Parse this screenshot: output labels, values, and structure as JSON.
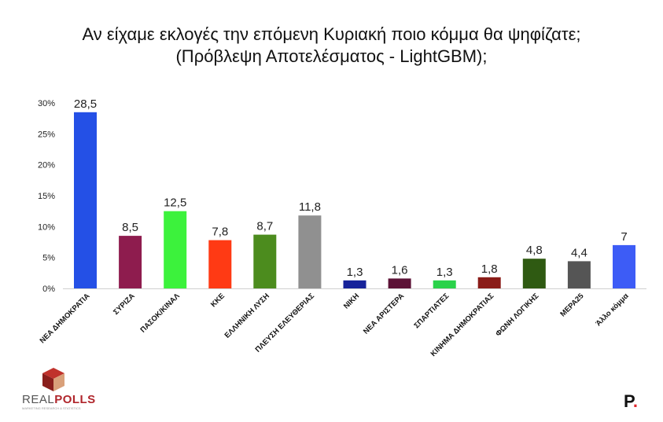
{
  "title_lines": [
    "Αν είχαμε εκλογές την επόμενη Κυριακή ποιο κόμμα θα ψηφίζατε;",
    "(Πρόβλεψη Αποτελέσματος - LightGBM);"
  ],
  "chart_data": {
    "type": "bar",
    "title": "Αν είχαμε εκλογές την επόμενη Κυριακή ποιο κόμμα θα ψηφίζατε; (Πρόβλεψη Αποτελέσματος - LightGBM);",
    "xlabel": "",
    "ylabel": "",
    "ylim": [
      0,
      30
    ],
    "yticks": [
      "0%",
      "5%",
      "10%",
      "15%",
      "20%",
      "25%",
      "30%"
    ],
    "grid": false,
    "legend": "none",
    "categories": [
      "ΝΕΑ ΔΗΜΟΚΡΑΤΙΑ",
      "ΣΥΡΙΖΑ",
      "ΠΑΣΟΚ/ΚΙΝΑΛ",
      "ΚΚΕ",
      "ΕΛΛΗΝΙΚΗ ΛΥΣΗ",
      "ΠΛΕΥΣΗ ΕΛΕΥΘΕΡΙΑΣ",
      "ΝΙΚΗ",
      "ΝΕΑ ΑΡΙΣΤΕΡΑ",
      "ΣΠΑΡΤΙΑΤΕΣ",
      "ΚΙΝΗΜΑ ΔΗΜΟΚΡΑΤΙΑΣ",
      "ΦΩΝΗ ΛΟΓΙΚΗΣ",
      "ΜΕΡΑ25",
      "Άλλο κόμμα"
    ],
    "values": [
      28.5,
      8.5,
      12.5,
      7.8,
      8.7,
      11.8,
      1.3,
      1.6,
      1.3,
      1.8,
      4.8,
      4.4,
      7
    ],
    "value_labels": [
      "28,5",
      "8,5",
      "12,5",
      "7,8",
      "8,7",
      "11,8",
      "1,3",
      "1,6",
      "1,3",
      "1,8",
      "4,8",
      "4,4",
      "7"
    ],
    "colors": [
      "#2450e6",
      "#8e1c4e",
      "#3cf23c",
      "#ff3a14",
      "#4c8c1e",
      "#909090",
      "#17239a",
      "#5c1236",
      "#2ad24a",
      "#8a1c18",
      "#2f5a12",
      "#555555",
      "#3d5cf6"
    ]
  },
  "logos": {
    "left_brand_real": "REAL",
    "left_brand_polls": "POLLS",
    "left_tagline": "MARKETING RESEARCH & STATISTICS",
    "right_mark": "P",
    "right_dot": "."
  }
}
